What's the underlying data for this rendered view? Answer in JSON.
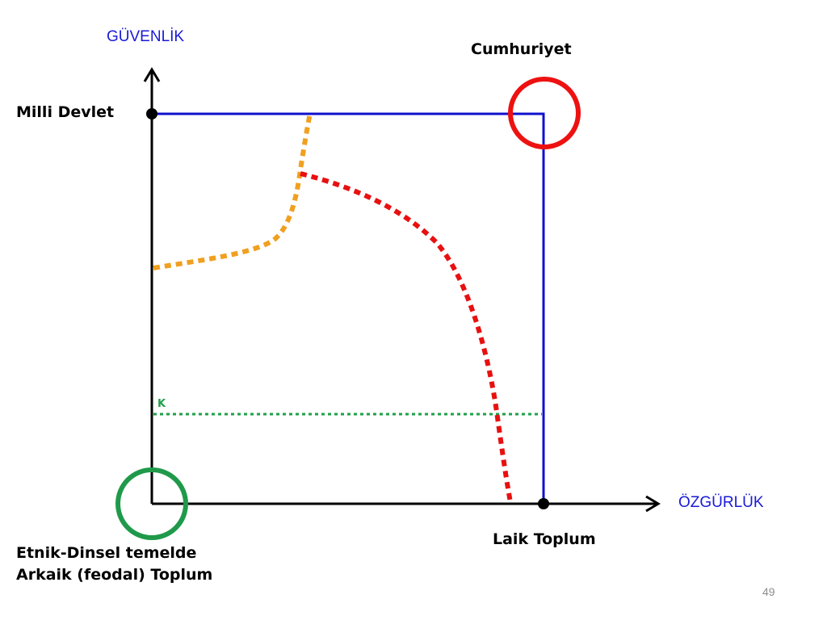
{
  "axes": {
    "y_title": "GÜVENLİK",
    "x_title": "ÖZGÜRLÜK"
  },
  "labels": {
    "top_right": "Cumhuriyet",
    "y_point": "Milli Devlet",
    "x_point": "Laik Toplum",
    "origin_line1": "Etnik-Dinsel temelde",
    "origin_line2": "Arkaik (feodal) Toplum",
    "k_marker": "K"
  },
  "page_number": "49",
  "colors": {
    "axis": "#000000",
    "axis_title": "#1a1ad6",
    "box": "#1010cc",
    "orange_curve": "#f0a020",
    "red_curve": "#e81010",
    "green_line": "#1fa04a",
    "red_circle": "#ee1111",
    "green_circle": "#1f9a4a"
  }
}
